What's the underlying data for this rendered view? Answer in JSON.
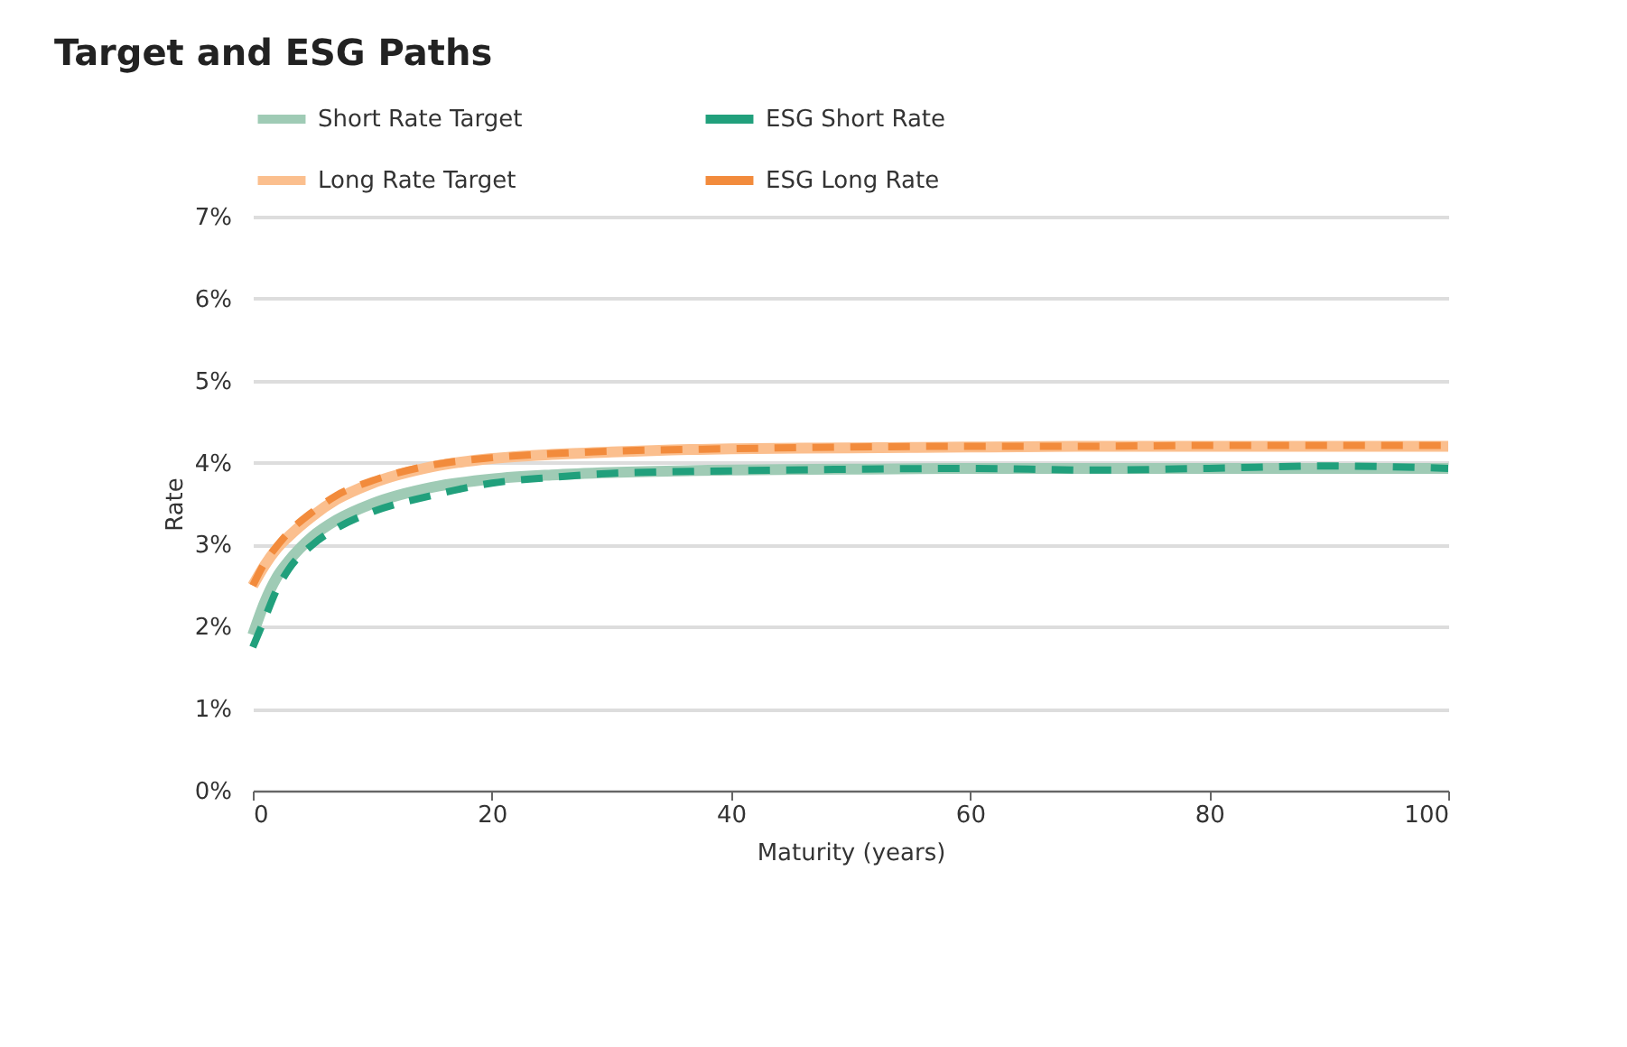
{
  "chart_data": {
    "type": "line",
    "title": "Target and ESG Paths",
    "xlabel": "Maturity (years)",
    "ylabel": "Rate",
    "xlim": [
      0,
      100
    ],
    "xticks": [
      0,
      20,
      40,
      60,
      80,
      100
    ],
    "ylim": [
      0,
      7
    ],
    "yticks": [
      {
        "value": 0,
        "label": "0%"
      },
      {
        "value": 1,
        "label": "1%"
      },
      {
        "value": 2,
        "label": "2%"
      },
      {
        "value": 3,
        "label": "3%"
      },
      {
        "value": 4,
        "label": "4%"
      },
      {
        "value": 5,
        "label": "5%"
      },
      {
        "value": 6,
        "label": "6%"
      },
      {
        "value": 7,
        "label": "7%"
      }
    ],
    "grid": "y",
    "legend": "top",
    "x": [
      0,
      1,
      2,
      3,
      5,
      7,
      10,
      15,
      20,
      25,
      30,
      40,
      50,
      60,
      70,
      80,
      90,
      100
    ],
    "series": [
      {
        "name": "Short Rate Target",
        "color": "#9fcbb5",
        "line_style": "solid",
        "values": [
          1.9,
          2.3,
          2.6,
          2.8,
          3.1,
          3.3,
          3.5,
          3.7,
          3.8,
          3.85,
          3.88,
          3.91,
          3.92,
          3.93,
          3.93,
          3.93,
          3.93,
          3.93
        ]
      },
      {
        "name": "ESG Short Rate",
        "color": "#21a07c",
        "line_style": "dashed",
        "values": [
          1.75,
          2.1,
          2.45,
          2.7,
          3.0,
          3.2,
          3.4,
          3.6,
          3.75,
          3.82,
          3.87,
          3.9,
          3.92,
          3.93,
          3.91,
          3.93,
          3.96,
          3.93
        ]
      },
      {
        "name": "Long Rate Target",
        "color": "#fbbf8e",
        "line_style": "solid",
        "values": [
          2.5,
          2.75,
          2.95,
          3.1,
          3.35,
          3.55,
          3.75,
          3.95,
          4.05,
          4.1,
          4.13,
          4.17,
          4.18,
          4.19,
          4.2,
          4.2,
          4.2,
          4.2
        ]
      },
      {
        "name": "ESG Long Rate",
        "color": "#f28b3c",
        "line_style": "dashed",
        "values": [
          2.5,
          2.78,
          2.98,
          3.15,
          3.4,
          3.6,
          3.78,
          3.97,
          4.06,
          4.11,
          4.14,
          4.17,
          4.19,
          4.2,
          4.2,
          4.21,
          4.21,
          4.21
        ]
      }
    ]
  }
}
